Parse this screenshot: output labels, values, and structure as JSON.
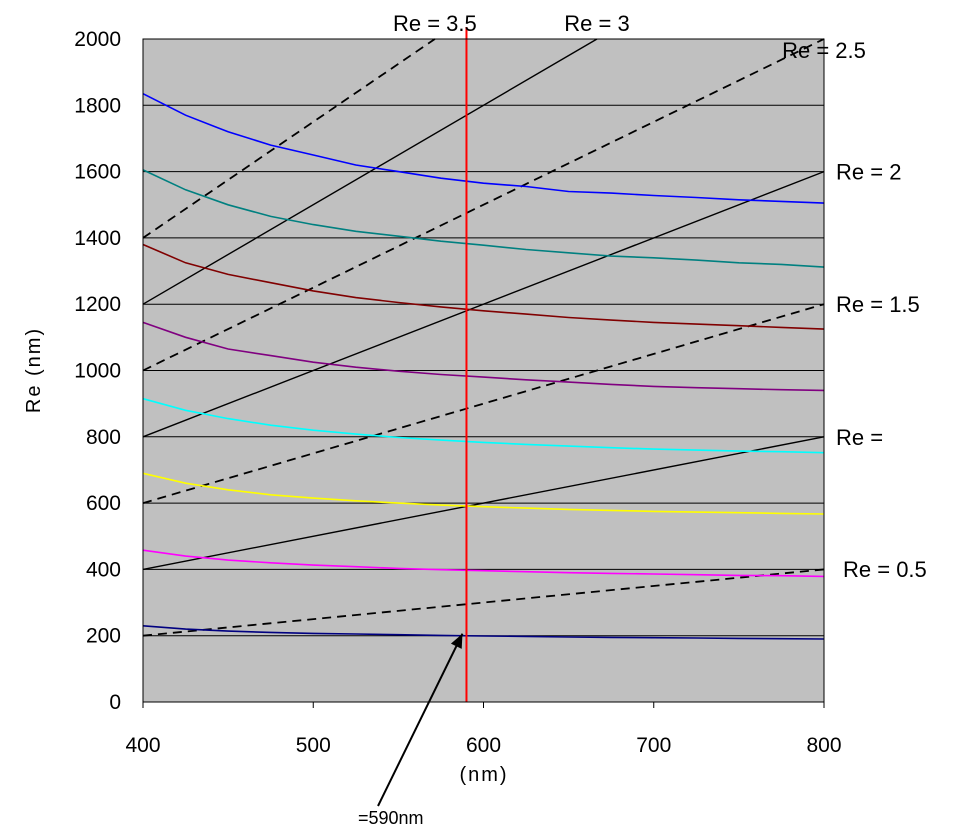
{
  "chart_data": {
    "type": "line",
    "title": "",
    "xlabel": "(nm)",
    "ylabel": "Re (nm)",
    "xlim": [
      400,
      800
    ],
    "ylim": [
      0,
      2000
    ],
    "x_ticks": [
      400,
      500,
      600,
      700,
      800
    ],
    "y_ticks": [
      0,
      200,
      400,
      600,
      800,
      1000,
      1200,
      1400,
      1600,
      1800,
      2000
    ],
    "grid": "horizontal",
    "plot_background": "#c0c0c0",
    "x": [
      400,
      425,
      450,
      475,
      500,
      525,
      550,
      575,
      600,
      625,
      650,
      675,
      700,
      725,
      750,
      775,
      800
    ],
    "series": [
      {
        "color": "#0000ff",
        "values": [
          1835,
          1770,
          1720,
          1680,
          1650,
          1620,
          1600,
          1580,
          1565,
          1555,
          1540,
          1535,
          1528,
          1522,
          1515,
          1510,
          1505
        ]
      },
      {
        "color": "#008080",
        "values": [
          1605,
          1545,
          1500,
          1465,
          1440,
          1420,
          1405,
          1390,
          1378,
          1365,
          1355,
          1345,
          1340,
          1333,
          1325,
          1320,
          1312
        ]
      },
      {
        "color": "#800000",
        "values": [
          1380,
          1325,
          1290,
          1265,
          1240,
          1220,
          1205,
          1192,
          1180,
          1170,
          1160,
          1152,
          1145,
          1140,
          1135,
          1130,
          1125
        ]
      },
      {
        "color": "#800080",
        "values": [
          1145,
          1100,
          1065,
          1045,
          1025,
          1010,
          998,
          988,
          980,
          972,
          965,
          958,
          952,
          948,
          945,
          942,
          940
        ]
      },
      {
        "color": "#00ffff",
        "values": [
          915,
          880,
          855,
          835,
          820,
          808,
          798,
          790,
          783,
          777,
          772,
          767,
          763,
          760,
          757,
          755,
          752
        ]
      },
      {
        "color": "#ffff00",
        "values": [
          690,
          660,
          640,
          625,
          615,
          607,
          600,
          594,
          589,
          585,
          581,
          578,
          575,
          573,
          571,
          569,
          567
        ]
      },
      {
        "color": "#ff00ff",
        "values": [
          458,
          440,
          428,
          420,
          413,
          408,
          403,
          399,
          396,
          393,
          390,
          388,
          386,
          384,
          382,
          381,
          379
        ]
      },
      {
        "color": "#000080",
        "values": [
          230,
          220,
          214,
          210,
          207,
          205,
          203,
          201,
          199,
          198,
          196,
          195,
          194,
          193,
          192,
          191,
          190
        ]
      }
    ],
    "reference_lines": [
      {
        "label": "Re = 0.5",
        "ratio": 0.5,
        "dash": "dashed"
      },
      {
        "label": "Re =",
        "ratio": 1.0,
        "dash": "solid"
      },
      {
        "label": "Re = 1.5",
        "ratio": 1.5,
        "dash": "dashed"
      },
      {
        "label": "Re = 2",
        "ratio": 2.0,
        "dash": "solid"
      },
      {
        "label": "Re = 2.5",
        "ratio": 2.5,
        "dash": "dashed"
      },
      {
        "label": "Re = 3",
        "ratio": 3.0,
        "dash": "solid"
      },
      {
        "label": "Re = 3.5",
        "ratio": 3.5,
        "dash": "dashed"
      }
    ],
    "marker_line": {
      "x": 590,
      "color": "#ff0000"
    },
    "annotation": {
      "text": "=590nm",
      "points_to_x": 590,
      "points_to_y": 200
    }
  }
}
